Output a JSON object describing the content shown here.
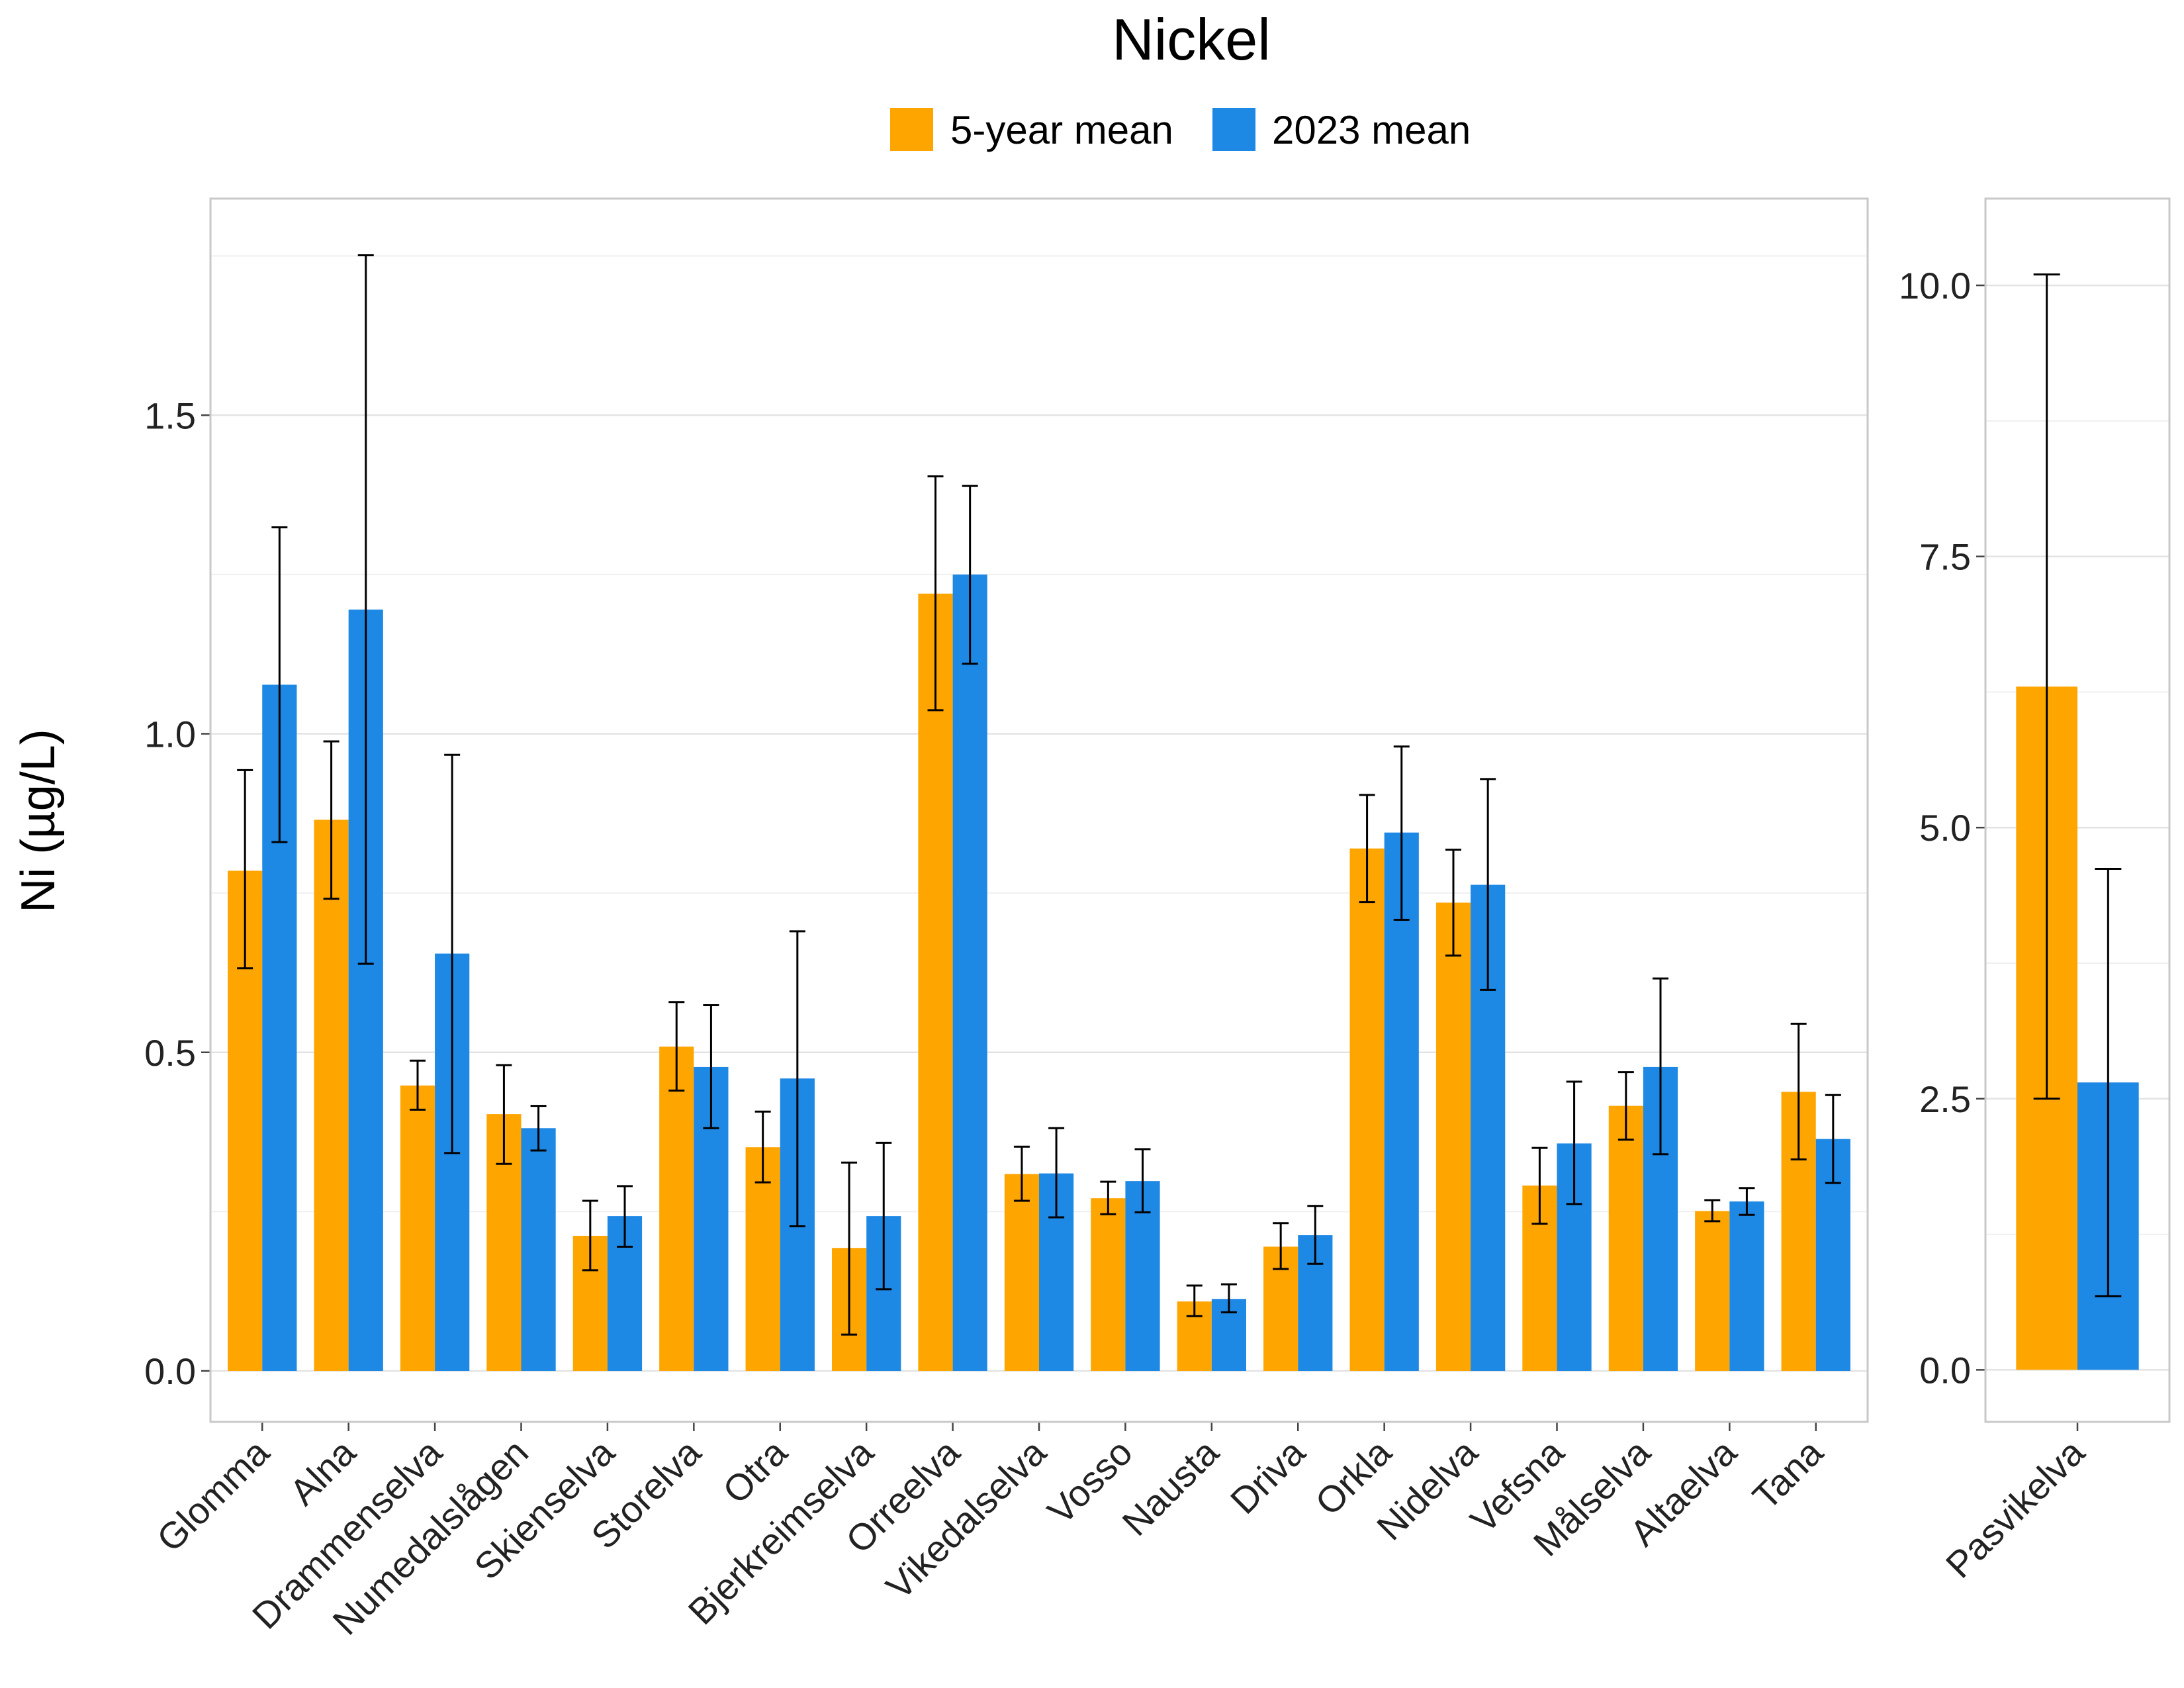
{
  "chart_data": [
    {
      "type": "bar",
      "title": "Nickel",
      "ylabel": "Ni (µg/L)",
      "xlabel": "",
      "ylim": [
        -0.08,
        1.84
      ],
      "yticks": [
        0.0,
        0.5,
        1.0,
        1.5
      ],
      "ytick_labels": [
        "0.0",
        "0.5",
        "1.0",
        "1.5"
      ],
      "grid": true,
      "legend_position": "top",
      "categories": [
        "Glomma",
        "Alna",
        "Drammenselva",
        "Numedalslågen",
        "Skienselva",
        "Storelva",
        "Otra",
        "Bjerkreimselva",
        "Orreelva",
        "Vikedalselva",
        "Vosso",
        "Nausta",
        "Driva",
        "Orkla",
        "Nidelva",
        "Vefsna",
        "Målselva",
        "Altaelva",
        "Tana"
      ],
      "series": [
        {
          "name": "5-year mean",
          "color": "#FFA500",
          "values": [
            0.785,
            0.865,
            0.448,
            0.403,
            0.212,
            0.509,
            0.351,
            0.193,
            1.22,
            0.309,
            0.271,
            0.109,
            0.195,
            0.82,
            0.735,
            0.291,
            0.416,
            0.251,
            0.438
          ],
          "err_low": [
            0.632,
            0.741,
            0.41,
            0.325,
            0.158,
            0.44,
            0.296,
            0.057,
            1.037,
            0.267,
            0.246,
            0.086,
            0.16,
            0.736,
            0.652,
            0.231,
            0.363,
            0.235,
            0.332
          ],
          "err_high": [
            0.943,
            0.988,
            0.487,
            0.48,
            0.267,
            0.579,
            0.407,
            0.327,
            1.404,
            0.352,
            0.297,
            0.134,
            0.232,
            0.904,
            0.818,
            0.35,
            0.469,
            0.268,
            0.545
          ]
        },
        {
          "name": "2023 mean",
          "color": "#1E88E5",
          "values": [
            1.077,
            1.195,
            0.655,
            0.381,
            0.243,
            0.477,
            0.459,
            0.243,
            1.25,
            0.31,
            0.298,
            0.113,
            0.213,
            0.845,
            0.763,
            0.357,
            0.477,
            0.266,
            0.364
          ],
          "err_low": [
            0.83,
            0.639,
            0.342,
            0.346,
            0.195,
            0.381,
            0.227,
            0.128,
            1.11,
            0.241,
            0.249,
            0.092,
            0.168,
            0.708,
            0.598,
            0.262,
            0.34,
            0.245,
            0.295
          ],
          "err_high": [
            1.324,
            1.751,
            0.967,
            0.416,
            0.29,
            0.574,
            0.69,
            0.358,
            1.389,
            0.381,
            0.348,
            0.136,
            0.259,
            0.98,
            0.929,
            0.454,
            0.616,
            0.287,
            0.433
          ]
        }
      ]
    },
    {
      "type": "bar",
      "ylim": [
        -0.48,
        10.8
      ],
      "yticks": [
        0.0,
        2.5,
        5.0,
        7.5,
        10.0
      ],
      "ytick_labels": [
        "0.0",
        "2.5",
        "5.0",
        "7.5",
        "10.0"
      ],
      "grid": true,
      "categories": [
        "Pasvikelva"
      ],
      "series": [
        {
          "name": "5-year mean",
          "color": "#FFA500",
          "values": [
            6.3
          ],
          "err_low": [
            2.5
          ],
          "err_high": [
            10.1
          ]
        },
        {
          "name": "2023 mean",
          "color": "#1E88E5",
          "values": [
            2.65
          ],
          "err_low": [
            0.68
          ],
          "err_high": [
            4.62
          ]
        }
      ]
    }
  ]
}
